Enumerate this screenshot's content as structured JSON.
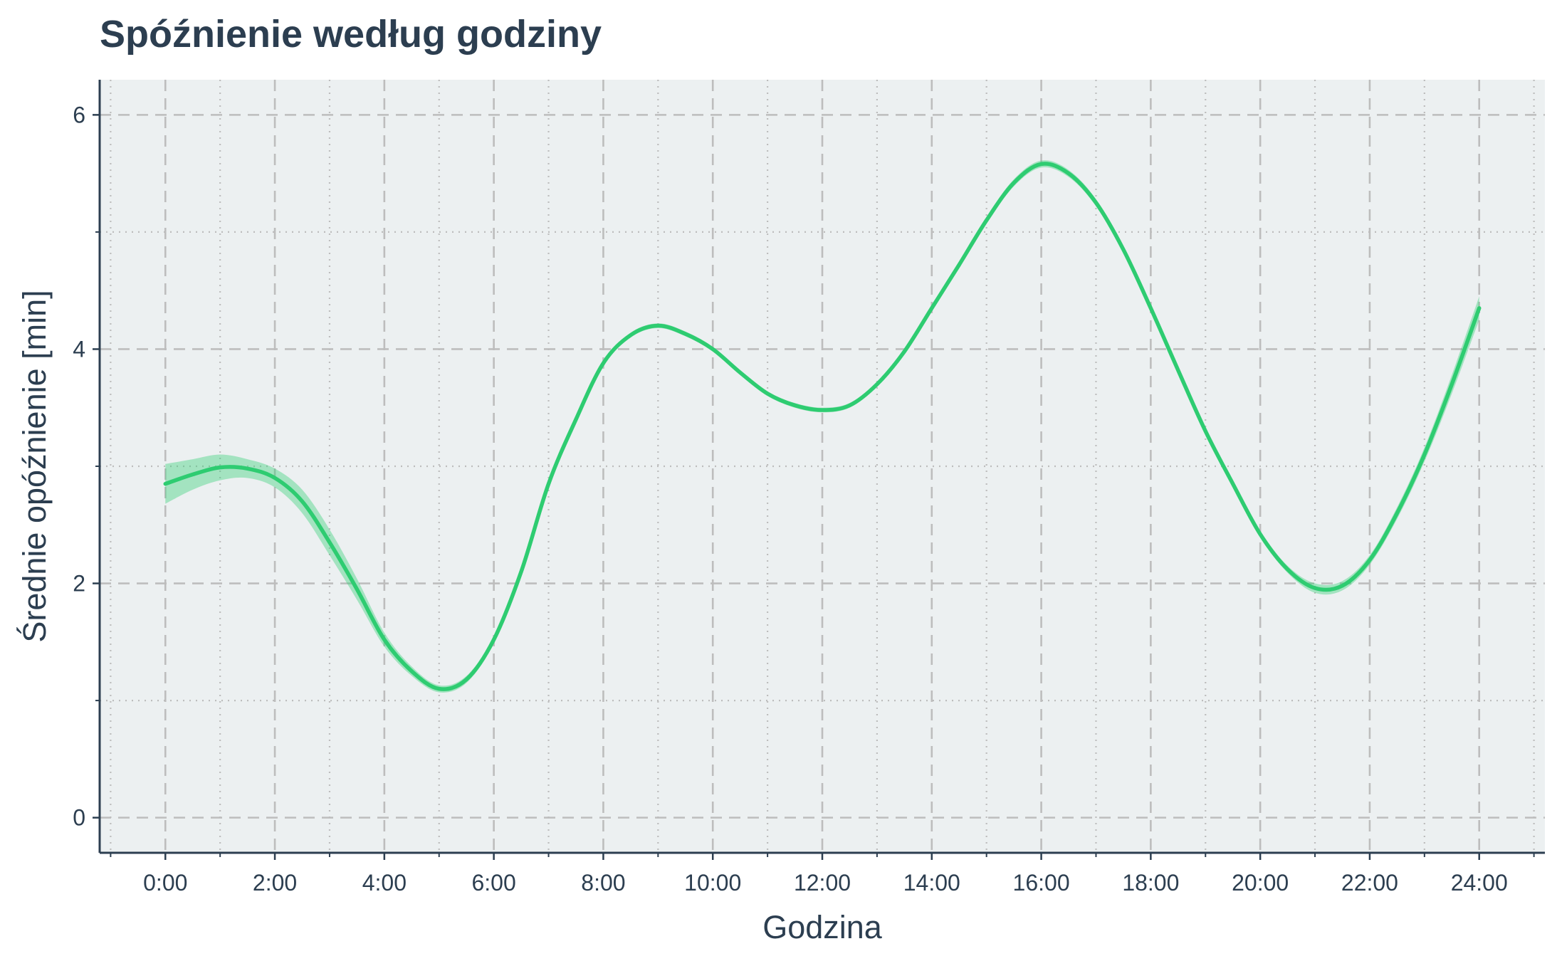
{
  "chart_data": {
    "type": "line",
    "title": "Spóźnienie według godziny",
    "xlabel": "Godzina",
    "ylabel": "Średnie opóźnienie [min]",
    "xlim": [
      -1.2,
      25.2
    ],
    "ylim": [
      -0.3,
      6.3
    ],
    "x_ticks": [
      0,
      2,
      4,
      6,
      8,
      10,
      12,
      14,
      16,
      18,
      20,
      22,
      24
    ],
    "x_tick_labels": [
      "0:00",
      "2:00",
      "4:00",
      "6:00",
      "8:00",
      "10:00",
      "12:00",
      "14:00",
      "16:00",
      "18:00",
      "20:00",
      "22:00",
      "24:00"
    ],
    "y_ticks": [
      0,
      2,
      4,
      6
    ],
    "y_tick_labels": [
      "0",
      "2",
      "4",
      "6"
    ],
    "grid": true,
    "legend": "none",
    "colors": {
      "line": "#2ecc71",
      "band": "#2ecc71",
      "panel": "#ecf0f1",
      "grid": "#bdbdbd",
      "text": "#2c3e50"
    },
    "series": [
      {
        "x": [
          0,
          0.5,
          1,
          1.5,
          2,
          2.5,
          3,
          3.5,
          4,
          4.5,
          5,
          5.5,
          6,
          6.5,
          7,
          7.5,
          8,
          8.5,
          9,
          9.5,
          10,
          10.5,
          11,
          11.5,
          12,
          12.5,
          13,
          13.5,
          14,
          14.5,
          15,
          15.5,
          16,
          16.5,
          17,
          17.5,
          18,
          18.5,
          19,
          19.5,
          20,
          20.5,
          21,
          21.5,
          22,
          22.5,
          23,
          23.5,
          24
        ],
        "y": [
          2.85,
          2.93,
          2.99,
          2.98,
          2.9,
          2.7,
          2.35,
          1.95,
          1.52,
          1.25,
          1.1,
          1.18,
          1.52,
          2.1,
          2.85,
          3.4,
          3.88,
          4.12,
          4.2,
          4.13,
          4.0,
          3.8,
          3.62,
          3.52,
          3.48,
          3.52,
          3.7,
          3.98,
          4.35,
          4.72,
          5.1,
          5.42,
          5.58,
          5.5,
          5.25,
          4.85,
          4.35,
          3.82,
          3.3,
          2.85,
          2.42,
          2.12,
          1.96,
          1.98,
          2.2,
          2.6,
          3.1,
          3.7,
          4.35
        ],
        "ci_low": [
          2.68,
          2.8,
          2.88,
          2.9,
          2.82,
          2.6,
          2.24,
          1.86,
          1.46,
          1.21,
          1.07,
          1.15,
          1.49,
          2.07,
          2.82,
          3.37,
          3.86,
          4.1,
          4.18,
          4.11,
          3.98,
          3.78,
          3.6,
          3.5,
          3.46,
          3.5,
          3.68,
          3.96,
          4.33,
          4.7,
          5.07,
          5.39,
          5.55,
          5.47,
          5.22,
          4.82,
          4.32,
          3.79,
          3.27,
          2.82,
          2.39,
          2.09,
          1.92,
          1.94,
          2.16,
          2.55,
          3.04,
          3.62,
          4.25
        ],
        "ci_high": [
          3.02,
          3.06,
          3.1,
          3.06,
          2.98,
          2.8,
          2.46,
          2.04,
          1.58,
          1.29,
          1.13,
          1.21,
          1.55,
          2.13,
          2.88,
          3.43,
          3.9,
          4.14,
          4.22,
          4.15,
          4.02,
          3.82,
          3.64,
          3.54,
          3.5,
          3.54,
          3.72,
          4.0,
          4.37,
          4.74,
          5.13,
          5.45,
          5.61,
          5.53,
          5.28,
          4.88,
          4.38,
          3.85,
          3.33,
          2.88,
          2.45,
          2.15,
          2.0,
          2.02,
          2.24,
          2.65,
          3.16,
          3.78,
          4.45
        ]
      }
    ]
  }
}
